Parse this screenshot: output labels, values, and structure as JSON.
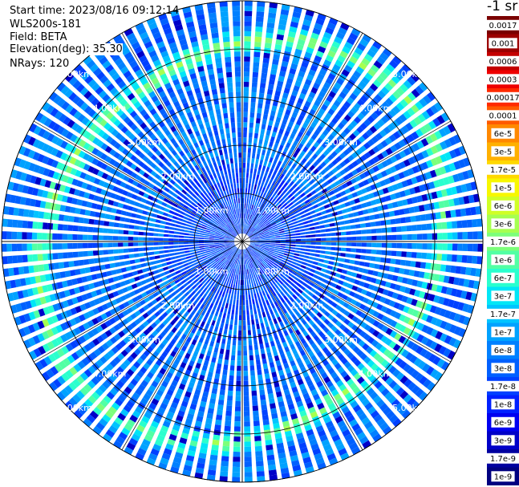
{
  "header": {
    "start_time": "Start time: 2023/08/16 09:12:14",
    "instrument": "WLS200s-181",
    "field": "Field: BETA",
    "elevation": "Elevation(deg): 35.30",
    "nrays": "NRays: 120"
  },
  "colorbar": {
    "title": "-1 sr",
    "labels": [
      "0.0017",
      "0.001",
      "0.0006",
      "0.0003",
      "0.00017",
      "0.0001",
      "6e-5",
      "3e-5",
      "1.7e-5",
      "1e-5",
      "6e-6",
      "3e-6",
      "1.7e-6",
      "1e-6",
      "6e-7",
      "3e-7",
      "1.7e-7",
      "1e-7",
      "6e-8",
      "3e-8",
      "1.7e-8",
      "1e-8",
      "6e-9",
      "3e-9",
      "1.7e-9",
      "1e-9"
    ],
    "colors": [
      "#7a0000",
      "#9c0000",
      "#c40000",
      "#ee0000",
      "#ff2a00",
      "#ff5a00",
      "#ff8800",
      "#ffb000",
      "#ffd800",
      "#f7f700",
      "#d0ff26",
      "#a6ff50",
      "#7cff7a",
      "#52ffa4",
      "#2affce",
      "#00e6f6",
      "#00c4ff",
      "#00a2ff",
      "#0080ff",
      "#0060ff",
      "#0040ff",
      "#0020ff",
      "#0000f0",
      "#0000c8",
      "#0000a0",
      "#000080"
    ]
  },
  "chart_data": {
    "type": "heatmap",
    "projection": "polar PPI",
    "field": "BETA",
    "n_rays": 120,
    "range_max_km": 5.0,
    "range_rings_km": [
      1.0,
      2.0,
      3.0,
      4.0,
      5.0
    ],
    "range_ring_labels": [
      "1.00km",
      "2.00km",
      "3.00km",
      "4.00km",
      "5.00km"
    ],
    "azimuth_spokes_deg": [
      0,
      30,
      60,
      90,
      120,
      150,
      180,
      210,
      240,
      270,
      300,
      330
    ],
    "scale": "log",
    "value_range": [
      1e-09,
      0.0017
    ],
    "dominant_values": "about 3e-8 to 1e-7 (blue) over most gates; elevated ring near 4.0-4.5 km at about 1e-6 to 1e-5"
  }
}
